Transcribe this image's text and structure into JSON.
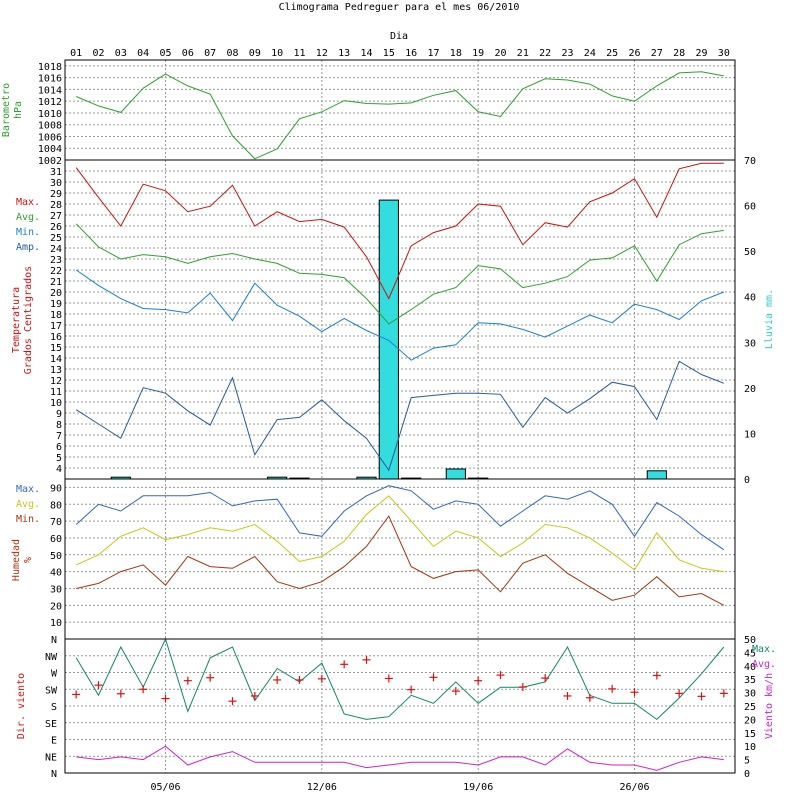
{
  "title": "Climograma Pedreguer para el mes 06/2010",
  "chart_data": [
    {
      "type": "line",
      "panel": "pressure",
      "x": [
        "01",
        "02",
        "03",
        "04",
        "05",
        "06",
        "07",
        "08",
        "09",
        "10",
        "11",
        "12",
        "13",
        "14",
        "15",
        "16",
        "17",
        "18",
        "19",
        "20",
        "21",
        "22",
        "23",
        "24",
        "25",
        "26",
        "27",
        "28",
        "29",
        "30"
      ],
      "xlabel": "Dia",
      "ylabel_lines": [
        "Barometro",
        "hPa"
      ],
      "yticks": [
        1002,
        1004,
        1006,
        1008,
        1010,
        1012,
        1014,
        1016,
        1018
      ],
      "ylim": [
        1002,
        1019
      ],
      "grid": true,
      "series": [
        {
          "values": [
            1012.8,
            1011.2,
            1010.1,
            1014.2,
            1016.6,
            1014.6,
            1013.2,
            1006.1,
            1002.2,
            1003.9,
            1009.0,
            1010.2,
            1012.1,
            1011.6,
            1011.5,
            1011.7,
            1013.0,
            1013.8,
            1010.2,
            1009.4,
            1014.1,
            1015.8,
            1015.6,
            1014.9,
            1012.9,
            1012.0,
            1014.6,
            1016.8,
            1017.0,
            1016.3
          ],
          "color": "#2ea12e"
        }
      ]
    },
    {
      "type": "line",
      "panel": "temperature",
      "ylabel_lines": [
        "Temperatura",
        "Grados Centigrados"
      ],
      "y2label": "Lluvia mm.",
      "yticks": [
        4,
        5,
        6,
        7,
        8,
        9,
        10,
        11,
        12,
        13,
        14,
        15,
        16,
        17,
        18,
        19,
        20,
        21,
        22,
        23,
        24,
        25,
        26,
        27,
        28,
        29,
        30,
        31
      ],
      "ylim": [
        3,
        32
      ],
      "y2ticks": [
        0,
        10,
        20,
        30,
        40,
        50,
        60,
        70
      ],
      "y2lim": [
        0,
        70
      ],
      "grid": true,
      "legend": [
        "Max.",
        "Avg.",
        "Min.",
        "Amp."
      ],
      "series": [
        {
          "name": "Max.",
          "color": "#cc1111",
          "values": [
            31.3,
            28.6,
            26.0,
            29.8,
            29.2,
            27.3,
            27.8,
            29.7,
            26.0,
            27.3,
            26.4,
            26.6,
            25.9,
            23.2,
            19.4,
            24.2,
            25.4,
            26.0,
            28.0,
            27.8,
            24.3,
            26.3,
            25.9,
            28.2,
            29.0,
            30.3,
            26.8,
            31.2,
            31.7,
            31.7
          ]
        },
        {
          "name": "Avg.",
          "color": "#2ea12e",
          "values": [
            26.2,
            24.1,
            23.0,
            23.4,
            23.2,
            22.6,
            23.2,
            23.5,
            23.0,
            22.6,
            21.7,
            21.6,
            21.3,
            19.4,
            17.1,
            18.4,
            19.8,
            20.4,
            22.4,
            22.1,
            20.4,
            20.8,
            21.4,
            22.9,
            23.1,
            24.2,
            21.0,
            24.3,
            25.3,
            25.6
          ]
        },
        {
          "name": "Min.",
          "color": "#1a7fd6",
          "values": [
            22.0,
            20.6,
            19.4,
            18.5,
            18.4,
            18.1,
            19.9,
            17.4,
            20.8,
            18.8,
            17.8,
            16.4,
            17.6,
            16.5,
            15.6,
            13.8,
            14.9,
            15.2,
            17.2,
            17.1,
            16.6,
            15.9,
            16.9,
            17.9,
            17.2,
            18.9,
            18.4,
            17.5,
            19.2,
            20.0
          ]
        },
        {
          "name": "Amp.",
          "color": "#2a5a9e",
          "values": [
            9.3,
            8.0,
            6.7,
            11.3,
            10.8,
            9.2,
            7.9,
            12.2,
            5.2,
            8.4,
            8.6,
            10.2,
            8.3,
            6.7,
            3.8,
            10.4,
            10.6,
            10.8,
            10.8,
            10.7,
            7.7,
            10.4,
            9.0,
            10.3,
            11.8,
            11.4,
            8.4,
            13.7,
            12.5,
            11.7
          ]
        }
      ],
      "rain": {
        "name": "Lluvia mm.",
        "color": "#33dddd",
        "values": [
          0,
          0,
          0.4,
          0,
          0,
          0,
          0,
          0,
          0,
          0.4,
          0.2,
          0,
          0,
          0.4,
          61.2,
          0.2,
          0,
          2.2,
          0.2,
          0,
          0,
          0,
          0,
          0,
          0,
          0,
          1.8,
          0,
          0,
          0
        ]
      }
    },
    {
      "type": "line",
      "panel": "humidity",
      "ylabel_lines": [
        "Humedad",
        "%"
      ],
      "yticks": [
        10,
        20,
        30,
        40,
        50,
        60,
        70,
        80,
        90
      ],
      "ylim": [
        0,
        95
      ],
      "grid": true,
      "legend": [
        "Max.",
        "Avg.",
        "Min."
      ],
      "series": [
        {
          "name": "Max.",
          "color": "#3366cc",
          "values": [
            68,
            80,
            76,
            85,
            85,
            85,
            87,
            79,
            82,
            83,
            63,
            61,
            76,
            85,
            91,
            88,
            77,
            82,
            80,
            67,
            76,
            85,
            83,
            88,
            80,
            61,
            81,
            73,
            62,
            53
          ]
        },
        {
          "name": "Avg.",
          "color": "#c8c810",
          "values": [
            44,
            50,
            61,
            66,
            59,
            62,
            66,
            64,
            68,
            58,
            46,
            49,
            58,
            74,
            85,
            70,
            55,
            64,
            60,
            49,
            57,
            68,
            66,
            60,
            51,
            41,
            63,
            47,
            42,
            40
          ]
        },
        {
          "name": "Min.",
          "color": "#aa3311",
          "values": [
            30,
            33,
            40,
            44,
            32,
            49,
            43,
            42,
            49,
            34,
            30,
            34,
            43,
            55,
            73,
            43,
            36,
            40,
            41,
            28,
            45,
            50,
            39,
            31,
            23,
            26,
            37,
            25,
            27,
            20
          ]
        }
      ]
    },
    {
      "type": "line",
      "panel": "wind",
      "ylabel": "Dir. viento",
      "y2label": "Viento km/h",
      "direction_ticks": [
        "N",
        "NE",
        "E",
        "SE",
        "S",
        "SW",
        "W",
        "NW",
        "N"
      ],
      "y2ticks": [
        0,
        5,
        10,
        15,
        20,
        25,
        30,
        35,
        40,
        45,
        50
      ],
      "y2lim": [
        0,
        50
      ],
      "grid": true,
      "xticks_dates": [
        "05/06",
        "12/06",
        "19/06",
        "26/06"
      ],
      "legend": [
        "Max.",
        "Avg."
      ],
      "series": [
        {
          "name": "Max.",
          "color": "#118866",
          "values": [
            43,
            29,
            47,
            32,
            50,
            23,
            43,
            47,
            27,
            39,
            34,
            41,
            22,
            20,
            21,
            29,
            26,
            34,
            26,
            32,
            32,
            34,
            47,
            29,
            26,
            26,
            20,
            28,
            37,
            47
          ]
        },
        {
          "name": "Avg.",
          "color": "#cc22cc",
          "values": [
            6,
            5,
            6,
            5,
            10,
            3,
            6,
            8,
            4,
            4,
            4,
            4,
            4,
            2,
            3,
            4,
            4,
            4,
            3,
            6,
            6,
            3,
            9,
            4,
            3,
            3,
            1,
            4,
            6,
            5
          ]
        }
      ],
      "direction_values": [
        211,
        236,
        213,
        225,
        200,
        248,
        256,
        193,
        207,
        250,
        250,
        253,
        292,
        304,
        254,
        224,
        257,
        220,
        248,
        263,
        231,
        255,
        207,
        202,
        226,
        217,
        262,
        214,
        206,
        214
      ],
      "direction_color": "#dd1111"
    }
  ]
}
